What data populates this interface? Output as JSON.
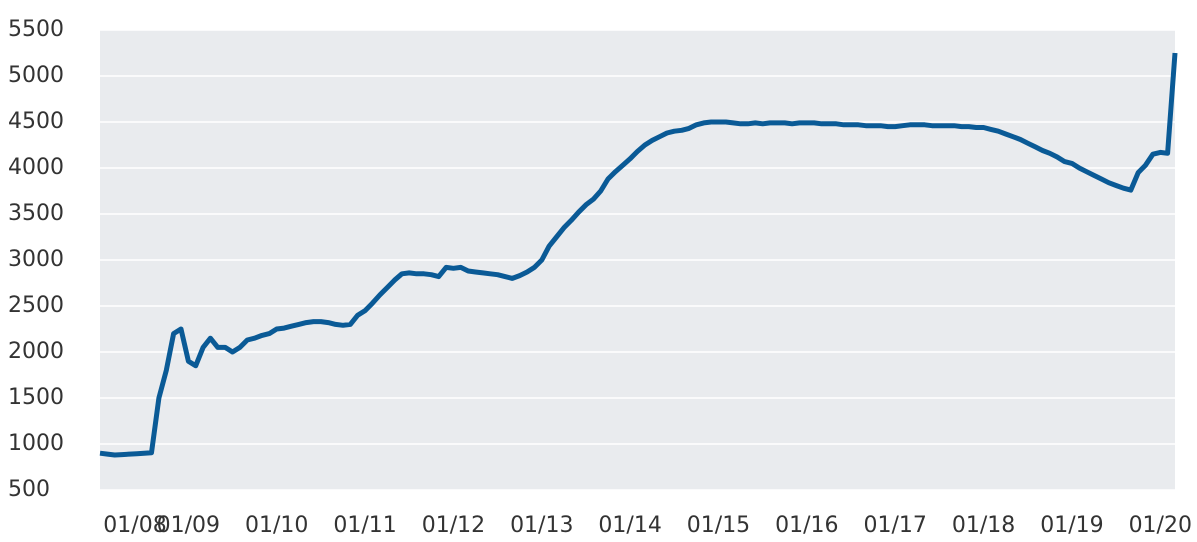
{
  "chart_data": {
    "type": "line",
    "x": [
      "2008-01",
      "2008-02",
      "2008-03",
      "2008-04",
      "2008-05",
      "2008-06",
      "2008-07",
      "2008-08",
      "2008-09",
      "2008-10",
      "2008-11",
      "2008-12",
      "2009-01",
      "2009-02",
      "2009-03",
      "2009-04",
      "2009-05",
      "2009-06",
      "2009-07",
      "2009-08",
      "2009-09",
      "2009-10",
      "2009-11",
      "2009-12",
      "2010-01",
      "2010-02",
      "2010-03",
      "2010-04",
      "2010-05",
      "2010-06",
      "2010-07",
      "2010-08",
      "2010-09",
      "2010-10",
      "2010-11",
      "2010-12",
      "2011-01",
      "2011-02",
      "2011-03",
      "2011-04",
      "2011-05",
      "2011-06",
      "2011-07",
      "2011-08",
      "2011-09",
      "2011-10",
      "2011-11",
      "2011-12",
      "2012-01",
      "2012-02",
      "2012-03",
      "2012-04",
      "2012-05",
      "2012-06",
      "2012-07",
      "2012-08",
      "2012-09",
      "2012-10",
      "2012-11",
      "2012-12",
      "2013-01",
      "2013-02",
      "2013-03",
      "2013-04",
      "2013-05",
      "2013-06",
      "2013-07",
      "2013-08",
      "2013-09",
      "2013-10",
      "2013-11",
      "2013-12",
      "2014-01",
      "2014-02",
      "2014-03",
      "2014-04",
      "2014-05",
      "2014-06",
      "2014-07",
      "2014-08",
      "2014-09",
      "2014-10",
      "2014-11",
      "2014-12",
      "2015-01",
      "2015-02",
      "2015-03",
      "2015-04",
      "2015-05",
      "2015-06",
      "2015-07",
      "2015-08",
      "2015-09",
      "2015-10",
      "2015-11",
      "2015-12",
      "2016-01",
      "2016-02",
      "2016-03",
      "2016-04",
      "2016-05",
      "2016-06",
      "2016-07",
      "2016-08",
      "2016-09",
      "2016-10",
      "2016-11",
      "2016-12",
      "2017-01",
      "2017-02",
      "2017-03",
      "2017-04",
      "2017-05",
      "2017-06",
      "2017-07",
      "2017-08",
      "2017-09",
      "2017-10",
      "2017-11",
      "2017-12",
      "2018-01",
      "2018-02",
      "2018-03",
      "2018-04",
      "2018-05",
      "2018-06",
      "2018-07",
      "2018-08",
      "2018-09",
      "2018-10",
      "2018-11",
      "2018-12",
      "2019-01",
      "2019-02",
      "2019-03",
      "2019-04",
      "2019-05",
      "2019-06",
      "2019-07",
      "2019-08",
      "2019-09",
      "2019-10",
      "2019-11",
      "2019-12",
      "2020-01",
      "2020-02",
      "2020-03"
    ],
    "series": [
      {
        "color": "#0a5a96",
        "values": [
          900,
          890,
          880,
          885,
          890,
          895,
          900,
          905,
          1500,
          1800,
          2200,
          2250,
          1900,
          1850,
          2050,
          2150,
          2050,
          2050,
          2000,
          2050,
          2130,
          2150,
          2180,
          2200,
          2250,
          2260,
          2280,
          2300,
          2320,
          2330,
          2330,
          2320,
          2300,
          2290,
          2300,
          2400,
          2450,
          2530,
          2620,
          2700,
          2780,
          2850,
          2860,
          2850,
          2850,
          2840,
          2820,
          2920,
          2910,
          2920,
          2880,
          2870,
          2860,
          2850,
          2840,
          2820,
          2800,
          2830,
          2870,
          2920,
          3000,
          3150,
          3250,
          3350,
          3430,
          3520,
          3600,
          3660,
          3750,
          3880,
          3960,
          4030,
          4100,
          4180,
          4250,
          4300,
          4340,
          4380,
          4400,
          4410,
          4430,
          4470,
          4490,
          4500,
          4500,
          4500,
          4490,
          4480,
          4480,
          4490,
          4480,
          4490,
          4490,
          4490,
          4480,
          4490,
          4490,
          4490,
          4480,
          4480,
          4480,
          4470,
          4470,
          4470,
          4460,
          4460,
          4460,
          4450,
          4450,
          4460,
          4470,
          4470,
          4470,
          4460,
          4460,
          4460,
          4460,
          4450,
          4450,
          4440,
          4440,
          4420,
          4400,
          4370,
          4340,
          4310,
          4270,
          4230,
          4190,
          4160,
          4120,
          4070,
          4050,
          4000,
          3960,
          3920,
          3880,
          3840,
          3810,
          3780,
          3760,
          3950,
          4030,
          4150,
          4170,
          4160,
          5250
        ]
      }
    ],
    "xlim": [
      "2008-01",
      "2020-03"
    ],
    "xticks": [
      {
        "value": "2008-01",
        "label": "01/08"
      },
      {
        "value": "2009-01",
        "label": "01/09"
      },
      {
        "value": "2010-01",
        "label": "01/10"
      },
      {
        "value": "2011-01",
        "label": "01/11"
      },
      {
        "value": "2012-01",
        "label": "01/12"
      },
      {
        "value": "2013-01",
        "label": "01/13"
      },
      {
        "value": "2014-01",
        "label": "01/14"
      },
      {
        "value": "2015-01",
        "label": "01/15"
      },
      {
        "value": "2016-01",
        "label": "01/16"
      },
      {
        "value": "2017-01",
        "label": "01/17"
      },
      {
        "value": "2018-01",
        "label": "01/18"
      },
      {
        "value": "2019-01",
        "label": "01/19"
      },
      {
        "value": "2020-01",
        "label": "01/20"
      }
    ],
    "ylim": [
      500,
      5500
    ],
    "yticks": [
      500,
      1000,
      1500,
      2000,
      2500,
      3000,
      3500,
      4000,
      4500,
      5000,
      5500
    ],
    "grid": true
  }
}
